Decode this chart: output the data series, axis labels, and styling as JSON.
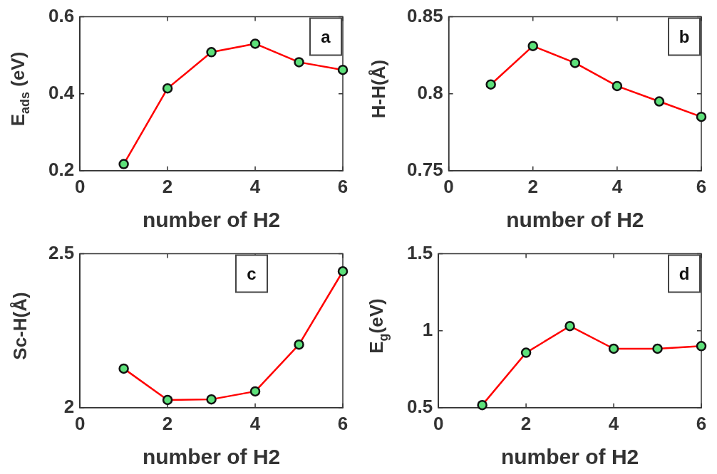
{
  "chart_data": [
    {
      "type": "line",
      "x": [
        1,
        2,
        3,
        4,
        5,
        6
      ],
      "xlabel": "number of H2",
      "ylabel": "E$_{ads}$ (eV)",
      "annotations": [
        "a"
      ],
      "series": [
        {
          "color": "#ff0000",
          "values": [
            0.217,
            0.414,
            0.508,
            0.53,
            0.482,
            0.462
          ]
        }
      ],
      "xlim": [
        0,
        6
      ],
      "xticks": [
        0,
        2,
        4,
        6
      ],
      "ylim": [
        0.2,
        0.6
      ],
      "yticks": [
        0.2,
        0.4,
        0.6
      ],
      "marker": "circle",
      "line_style": "solid",
      "grid": false,
      "legend": false
    },
    {
      "type": "line",
      "x": [
        1,
        2,
        3,
        4,
        5,
        6
      ],
      "xlabel": "number of H2",
      "ylabel": "H-H(Å)",
      "annotations": [
        "b"
      ],
      "series": [
        {
          "color": "#ff0000",
          "values": [
            0.806,
            0.831,
            0.82,
            0.805,
            0.795,
            0.785
          ]
        }
      ],
      "xlim": [
        0,
        6
      ],
      "xticks": [
        0,
        2,
        4,
        6
      ],
      "ylim": [
        0.75,
        0.85
      ],
      "yticks": [
        0.75,
        0.8,
        0.85
      ],
      "marker": "circle",
      "line_style": "solid",
      "grid": false,
      "legend": false
    },
    {
      "type": "line",
      "x": [
        1,
        2,
        3,
        4,
        5,
        6
      ],
      "xlabel": "number of H2",
      "ylabel": "Sc-H(Å)",
      "annotations": [
        "c"
      ],
      "series": [
        {
          "color": "#ff0000",
          "values": [
            2.127,
            2.025,
            2.027,
            2.053,
            2.205,
            2.443
          ]
        }
      ],
      "xlim": [
        0,
        6
      ],
      "xticks": [
        0,
        2,
        4,
        6
      ],
      "ylim": [
        2,
        2.5
      ],
      "yticks": [
        2,
        2.5
      ],
      "marker": "circle",
      "line_style": "solid",
      "grid": false,
      "legend": false
    },
    {
      "type": "line",
      "x": [
        1,
        2,
        3,
        4,
        5,
        6
      ],
      "xlabel": "number of H2",
      "ylabel": "E$_{g}$(eV)",
      "annotations": [
        "d"
      ],
      "series": [
        {
          "color": "#ff0000",
          "values": [
            0.517,
            0.857,
            1.03,
            0.883,
            0.883,
            0.9
          ]
        }
      ],
      "xlim": [
        0,
        6
      ],
      "xticks": [
        0,
        2,
        4,
        6
      ],
      "ylim": [
        0.5,
        1.5
      ],
      "yticks": [
        0.5,
        1,
        1.5
      ],
      "marker": "circle",
      "line_style": "solid",
      "grid": false,
      "legend": false
    }
  ]
}
